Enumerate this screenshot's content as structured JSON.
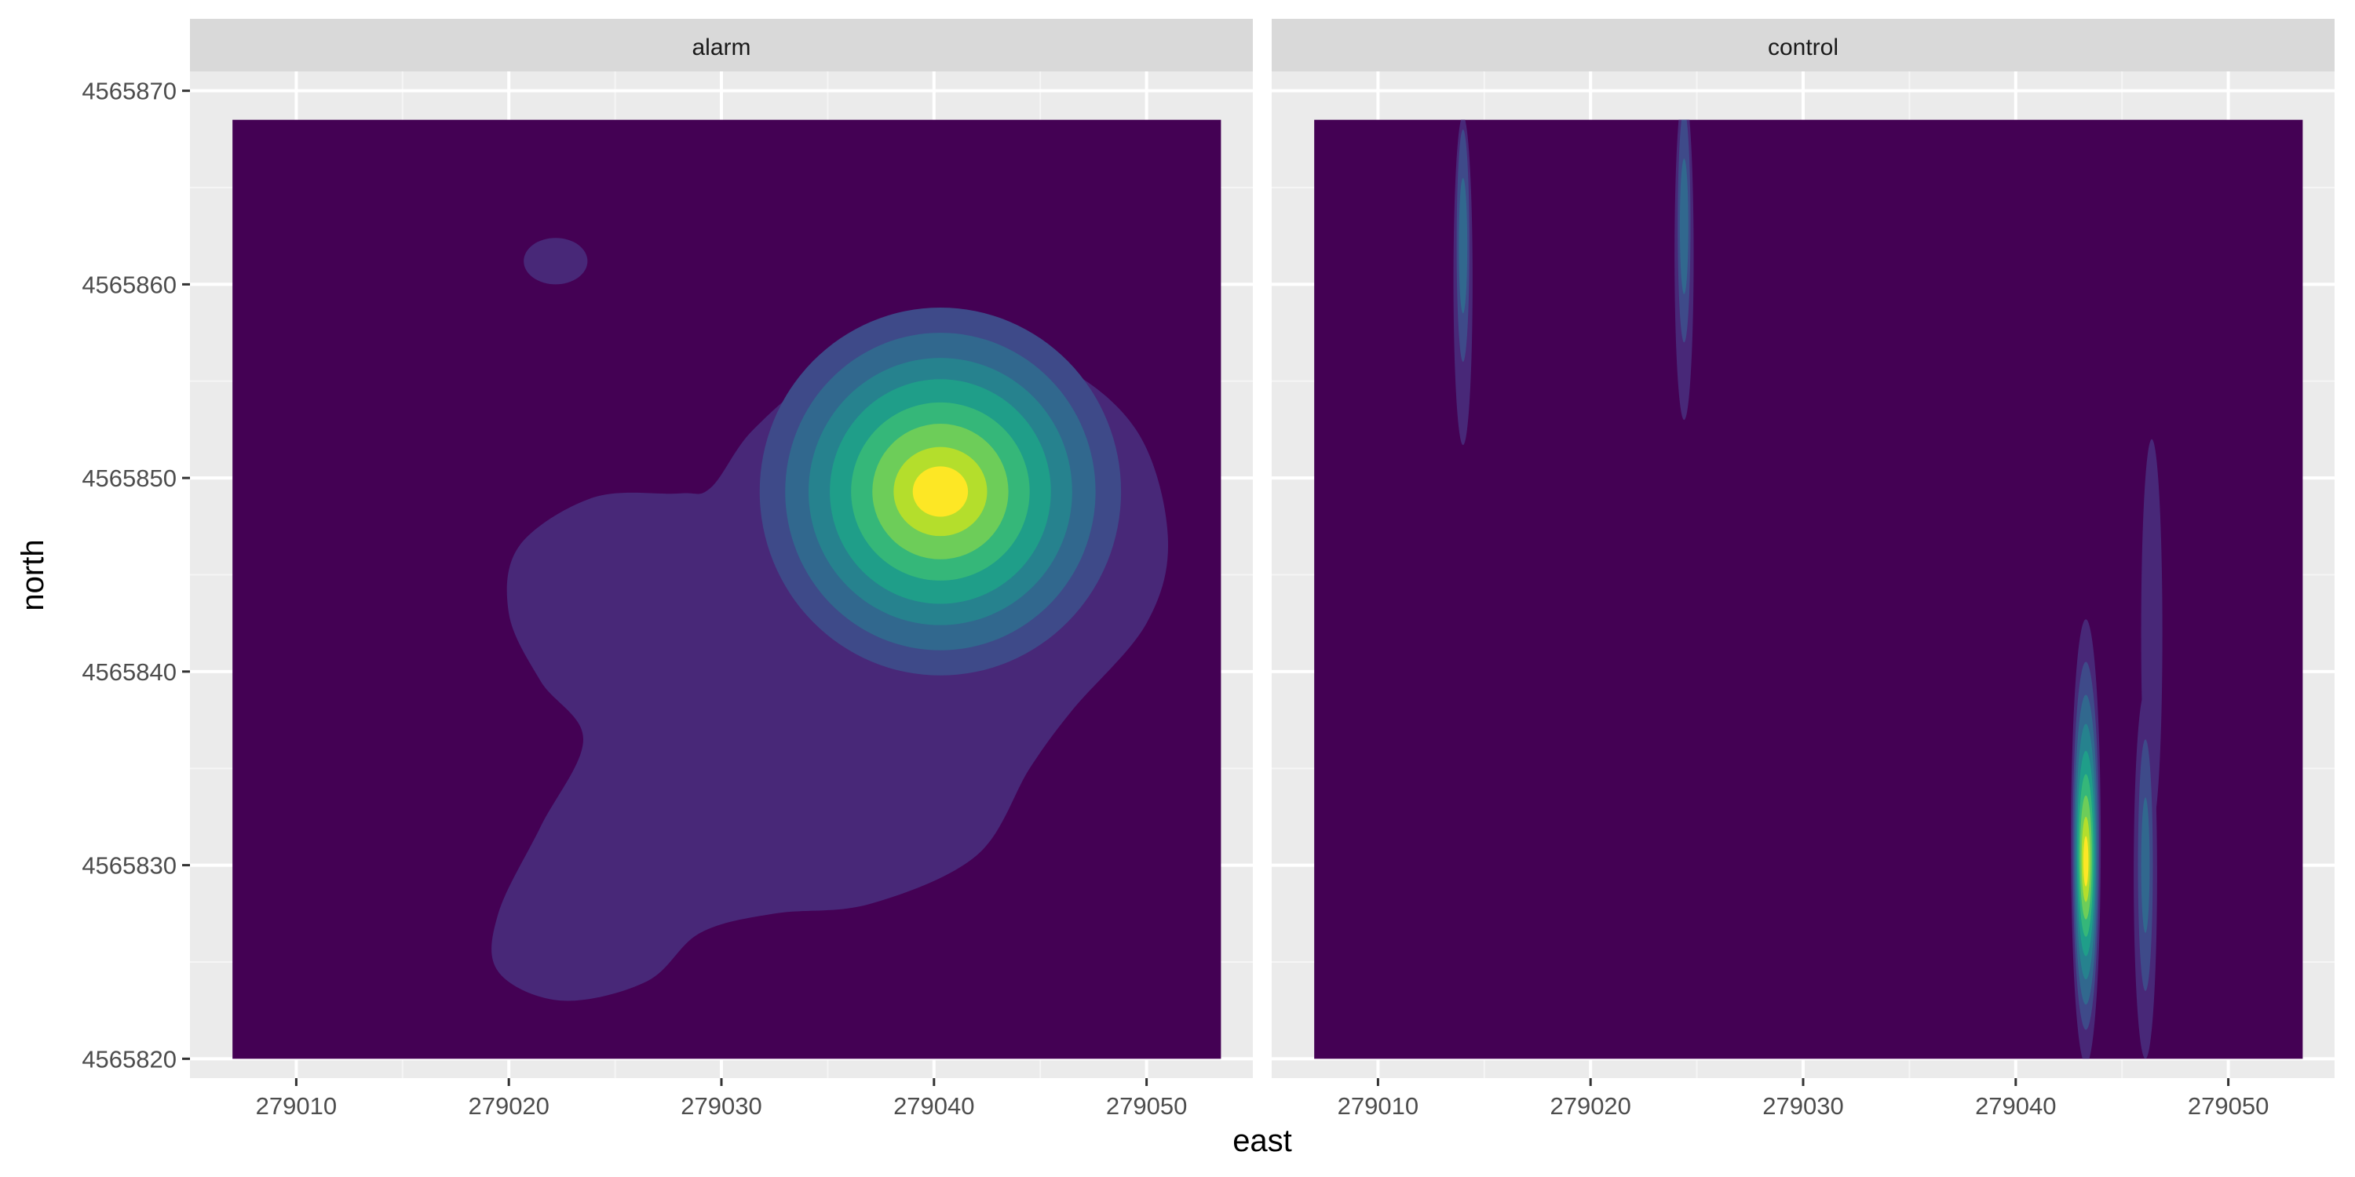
{
  "chart_data": {
    "type": "heatmap",
    "subtype": "2d density (filled contours), faceted",
    "xlabel": "east",
    "ylabel": "north",
    "xlim": [
      279005,
      279055
    ],
    "ylim": [
      4565819,
      4565871
    ],
    "x_ticks": [
      279010,
      279020,
      279030,
      279040,
      279050
    ],
    "y_ticks": [
      4565820,
      4565830,
      4565840,
      4565850,
      4565860,
      4565870
    ],
    "x_tick_labels": [
      "279010",
      "279020",
      "279030",
      "279040",
      "279050"
    ],
    "y_tick_labels": [
      "4565820",
      "4565830",
      "4565840",
      "4565850",
      "4565860",
      "4565870"
    ],
    "data_extent": {
      "x": [
        279007,
        279053.5
      ],
      "y": [
        4565820,
        4565868.5
      ]
    },
    "grid": true,
    "legend": "none",
    "palette": [
      "#440154",
      "#482878",
      "#3E4A89",
      "#31688E",
      "#26828E",
      "#1F9E89",
      "#35B779",
      "#6DCD59",
      "#B4DE2C",
      "#FDE725"
    ],
    "facets": [
      {
        "label": "alarm",
        "peaks": [
          {
            "x": 279040.3,
            "y": 4565849.3,
            "level": 1.0
          }
        ],
        "regions": [
          {
            "name": "outer",
            "level": 1,
            "points": [
              [
                279028.0,
                4565849.2
              ],
              [
                279024.0,
                4565849.0
              ],
              [
                279020.5,
                4565846.5
              ],
              [
                279020.0,
                4565843.0
              ],
              [
                279021.5,
                4565839.5
              ],
              [
                279023.5,
                4565836.5
              ],
              [
                279021.5,
                4565832.0
              ],
              [
                279019.5,
                4565827.5
              ],
              [
                279019.5,
                4565824.5
              ],
              [
                279022.5,
                4565823.0
              ],
              [
                279026.5,
                4565824.0
              ],
              [
                279029.0,
                4565826.5
              ],
              [
                279032.5,
                4565827.5
              ],
              [
                279037.0,
                4565828.0
              ],
              [
                279042.0,
                4565830.5
              ],
              [
                279044.5,
                4565835.0
              ],
              [
                279046.5,
                4565838.0
              ],
              [
                279050.0,
                4565842.5
              ],
              [
                279051.0,
                4565847.0
              ],
              [
                279049.5,
                4565852.5
              ],
              [
                279045.5,
                4565856.0
              ],
              [
                279040.0,
                4565857.0
              ],
              [
                279035.0,
                4565855.5
              ],
              [
                279031.5,
                4565852.5
              ],
              [
                279029.5,
                4565849.5
              ]
            ]
          },
          {
            "name": "islet",
            "level": 1,
            "ellipse": {
              "cx": 279022.2,
              "cy": 4565861.2,
              "rx": 1.5,
              "ry": 1.2
            }
          },
          {
            "level": 2,
            "ellipse": {
              "cx": 279040.3,
              "cy": 4565849.3,
              "rx": 8.5,
              "ry": 9.5
            }
          },
          {
            "level": 3,
            "ellipse": {
              "cx": 279040.3,
              "cy": 4565849.3,
              "rx": 7.3,
              "ry": 8.2
            }
          },
          {
            "level": 4,
            "ellipse": {
              "cx": 279040.3,
              "cy": 4565849.3,
              "rx": 6.2,
              "ry": 6.9
            }
          },
          {
            "level": 5,
            "ellipse": {
              "cx": 279040.3,
              "cy": 4565849.3,
              "rx": 5.2,
              "ry": 5.8
            }
          },
          {
            "level": 6,
            "ellipse": {
              "cx": 279040.3,
              "cy": 4565849.3,
              "rx": 4.2,
              "ry": 4.6
            }
          },
          {
            "level": 7,
            "ellipse": {
              "cx": 279040.3,
              "cy": 4565849.3,
              "rx": 3.2,
              "ry": 3.5
            }
          },
          {
            "level": 8,
            "ellipse": {
              "cx": 279040.3,
              "cy": 4565849.3,
              "rx": 2.2,
              "ry": 2.3
            }
          },
          {
            "level": 9,
            "ellipse": {
              "cx": 279040.3,
              "cy": 4565849.3,
              "rx": 1.3,
              "ry": 1.3
            }
          }
        ]
      },
      {
        "label": "control",
        "peaks": [
          {
            "x": 279043.3,
            "y": 4565830.5,
            "level": 1.0
          },
          {
            "x": 279046.1,
            "y": 4565830.0,
            "level": 0.35
          },
          {
            "x": 279046.4,
            "y": 4565847.0,
            "level": 0.25
          },
          {
            "x": 279014.0,
            "y": 4565862.0,
            "level": 0.35
          },
          {
            "x": 279024.4,
            "y": 4565863.0,
            "level": 0.35
          }
        ],
        "regions": [
          {
            "level": 1,
            "ellipse": {
              "cx": 279014.0,
              "cy": 4565860.2,
              "rx": 0.45,
              "ry": 8.5
            }
          },
          {
            "level": 2,
            "ellipse": {
              "cx": 279014.0,
              "cy": 4565862.0,
              "rx": 0.3,
              "ry": 6.0
            }
          },
          {
            "level": 3,
            "ellipse": {
              "cx": 279014.0,
              "cy": 4565862.0,
              "rx": 0.2,
              "ry": 3.5
            }
          },
          {
            "level": 1,
            "ellipse": {
              "cx": 279024.4,
              "cy": 4565861.5,
              "rx": 0.45,
              "ry": 8.5
            }
          },
          {
            "level": 2,
            "ellipse": {
              "cx": 279024.4,
              "cy": 4565863.0,
              "rx": 0.3,
              "ry": 6.0
            }
          },
          {
            "level": 3,
            "ellipse": {
              "cx": 279024.4,
              "cy": 4565863.0,
              "rx": 0.2,
              "ry": 3.5
            }
          },
          {
            "level": 1,
            "ellipse": {
              "cx": 279046.4,
              "cy": 4565842.0,
              "rx": 0.5,
              "ry": 10.0
            }
          },
          {
            "level": 1,
            "ellipse": {
              "cx": 279046.1,
              "cy": 4565829.5,
              "rx": 0.55,
              "ry": 9.5
            }
          },
          {
            "level": 2,
            "ellipse": {
              "cx": 279046.1,
              "cy": 4565830.0,
              "rx": 0.35,
              "ry": 6.5
            }
          },
          {
            "level": 3,
            "ellipse": {
              "cx": 279046.1,
              "cy": 4565830.0,
              "rx": 0.2,
              "ry": 3.5
            }
          },
          {
            "level": 1,
            "ellipse": {
              "cx": 279043.3,
              "cy": 4565831.2,
              "rx": 0.7,
              "ry": 11.5
            }
          },
          {
            "level": 2,
            "ellipse": {
              "cx": 279043.3,
              "cy": 4565831.0,
              "rx": 0.62,
              "ry": 9.5
            }
          },
          {
            "level": 3,
            "ellipse": {
              "cx": 279043.3,
              "cy": 4565830.8,
              "rx": 0.55,
              "ry": 8.0
            }
          },
          {
            "level": 4,
            "ellipse": {
              "cx": 279043.3,
              "cy": 4565830.7,
              "rx": 0.48,
              "ry": 6.6
            }
          },
          {
            "level": 5,
            "ellipse": {
              "cx": 279043.3,
              "cy": 4565830.6,
              "rx": 0.42,
              "ry": 5.3
            }
          },
          {
            "level": 6,
            "ellipse": {
              "cx": 279043.3,
              "cy": 4565830.5,
              "rx": 0.35,
              "ry": 4.2
            }
          },
          {
            "level": 7,
            "ellipse": {
              "cx": 279043.3,
              "cy": 4565830.4,
              "rx": 0.28,
              "ry": 3.2
            }
          },
          {
            "level": 8,
            "ellipse": {
              "cx": 279043.3,
              "cy": 4565830.3,
              "rx": 0.2,
              "ry": 2.2
            }
          },
          {
            "level": 9,
            "ellipse": {
              "cx": 279043.3,
              "cy": 4565830.2,
              "rx": 0.12,
              "ry": 1.3
            }
          }
        ]
      }
    ]
  }
}
